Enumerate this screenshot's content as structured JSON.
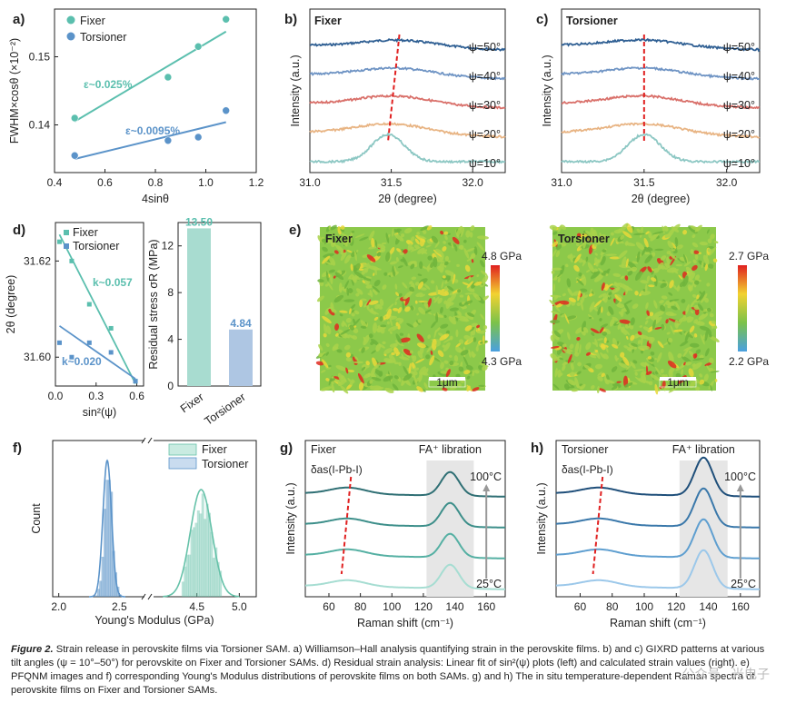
{
  "chart_data": [
    {
      "id": "a",
      "panel_label": "a)",
      "type": "scatter",
      "xlabel": "4sinθ",
      "ylabel": "FWHM×cosθ (×10⁻²)",
      "xlim": [
        0.4,
        1.2
      ],
      "ylim": [
        0.133,
        0.157
      ],
      "xticks": [
        "0.4",
        "0.6",
        "0.8",
        "1.0",
        "1.2"
      ],
      "yticks": [
        "0.14",
        "0.15"
      ],
      "legend": "top-left",
      "series": [
        {
          "name": "Fixer",
          "color": "#5bbfae",
          "x": [
            0.48,
            0.85,
            0.97,
            1.08
          ],
          "y": [
            0.141,
            0.147,
            0.1515,
            0.1555
          ],
          "fit": [
            [
              0.48,
              0.1405
            ],
            [
              1.08,
              0.1537
            ]
          ],
          "annotation": "ε~0.025%"
        },
        {
          "name": "Torsioner",
          "color": "#5b93c9",
          "x": [
            0.48,
            0.85,
            0.97,
            1.08
          ],
          "y": [
            0.1355,
            0.1377,
            0.1382,
            0.1421
          ],
          "fit": [
            [
              0.48,
              0.135
            ],
            [
              1.08,
              0.1404
            ]
          ],
          "annotation": "ε~0.0095%"
        }
      ]
    },
    {
      "id": "b",
      "panel_label": "b)",
      "type": "line",
      "title": "Fixer",
      "xlabel": "2θ (degree)",
      "ylabel": "Intensity (a.u.)",
      "xlim": [
        31.0,
        32.2
      ],
      "xticks": [
        "31.0",
        "31.5",
        "32.0"
      ],
      "series": [
        {
          "name": "ψ=50°",
          "color": "#2f5f93",
          "peak": 31.55
        },
        {
          "name": "ψ=40°",
          "color": "#6f94c4",
          "peak": 31.53
        },
        {
          "name": "ψ=30°",
          "color": "#d9706a",
          "peak": 31.52
        },
        {
          "name": "ψ=20°",
          "color": "#e8b483",
          "peak": 31.5
        },
        {
          "name": "ψ=10°",
          "color": "#8cc7c3",
          "peak": 31.48
        }
      ]
    },
    {
      "id": "c",
      "panel_label": "c)",
      "type": "line",
      "title": "Torsioner",
      "xlabel": "2θ (degree)",
      "ylabel": "Intensity (a.u.)",
      "xlim": [
        31.0,
        32.2
      ],
      "xticks": [
        "31.0",
        "31.5",
        "32.0"
      ],
      "series": [
        {
          "name": "ψ=50°",
          "color": "#2f5f93",
          "peak": 31.5
        },
        {
          "name": "ψ=40°",
          "color": "#6f94c4",
          "peak": 31.5
        },
        {
          "name": "ψ=30°",
          "color": "#d9706a",
          "peak": 31.5
        },
        {
          "name": "ψ=20°",
          "color": "#e8b483",
          "peak": 31.5
        },
        {
          "name": "ψ=10°",
          "color": "#8cc7c3",
          "peak": 31.5
        }
      ]
    },
    {
      "id": "d-left",
      "panel_label": "d)",
      "type": "scatter",
      "xlabel": "sin²(ψ)",
      "ylabel": "2θ (degree)",
      "xlim": [
        0.0,
        0.65
      ],
      "ylim": [
        31.594,
        31.628
      ],
      "xticks": [
        "0.0",
        "0.3",
        "0.6"
      ],
      "yticks": [
        "31.60",
        "31.62"
      ],
      "legend": "top-right",
      "series": [
        {
          "name": "Fixer",
          "color": "#5bbfae",
          "x": [
            0.03,
            0.12,
            0.25,
            0.41,
            0.59
          ],
          "y": [
            31.624,
            31.62,
            31.611,
            31.606,
            31.595
          ],
          "fit": [
            [
              0.03,
              31.6255
            ],
            [
              0.59,
              31.5945
            ]
          ],
          "annotation": "k~0.057"
        },
        {
          "name": "Torsioner",
          "color": "#5b93c9",
          "x": [
            0.03,
            0.12,
            0.25,
            0.41,
            0.59
          ],
          "y": [
            31.603,
            31.6,
            31.603,
            31.601,
            31.595
          ],
          "fit": [
            [
              0.03,
              31.6065
            ],
            [
              0.59,
              31.5955
            ]
          ],
          "annotation": "k~0.020"
        }
      ]
    },
    {
      "id": "d-right",
      "type": "bar",
      "ylabel": "Residual stress σR (MPa)",
      "ylim": [
        0,
        14
      ],
      "yticks": [
        "0",
        "4",
        "8",
        "12"
      ],
      "categories": [
        "Fixer",
        "Torsioner"
      ],
      "values": [
        13.5,
        4.84
      ],
      "value_labels": [
        "13.50",
        "4.84"
      ],
      "colors": [
        "#a8dcd0",
        "#aec6e3"
      ]
    },
    {
      "id": "e",
      "panel_label": "e)",
      "type": "heatmap",
      "maps": [
        {
          "title": "Fixer",
          "scale_max": "4.8 GPa",
          "scale_min": "4.3 GPa",
          "scalebar": "1μm"
        },
        {
          "title": "Torsioner",
          "scale_max": "2.7 GPa",
          "scale_min": "2.2 GPa",
          "scalebar": "1μm"
        }
      ],
      "colormap": [
        "#4aa0e0",
        "#7bc24a",
        "#f2d230",
        "#e02020"
      ]
    },
    {
      "id": "f",
      "panel_label": "f)",
      "type": "bar",
      "xlabel": "Young's Modulus (GPa)",
      "ylabel": "Count",
      "xticks": [
        "2.0",
        "2.5",
        "4.5",
        "5.0"
      ],
      "broken_axis": [
        2.7,
        4.0
      ],
      "legend": "top-right",
      "series": [
        {
          "name": "Fixer",
          "color": "#66c2a9",
          "center": 4.55,
          "width": 0.18
        },
        {
          "name": "Torsioner",
          "color": "#5b93c9",
          "center": 2.4,
          "width": 0.05
        }
      ]
    },
    {
      "id": "g",
      "panel_label": "g)",
      "type": "line",
      "title": "Fixer",
      "xlabel": "Raman shift (cm⁻¹)",
      "ylabel": "Intensity (a.u.)",
      "xlim": [
        45,
        172
      ],
      "xticks": [
        "60",
        "80",
        "100",
        "120",
        "140",
        "160"
      ],
      "annotations": [
        "δas(I-Pb-I)",
        "FA⁺ libration",
        "100°C",
        "25°C"
      ],
      "series_colors": [
        "#2f6f74",
        "#3d8f8a",
        "#55b0a3",
        "#a6ddd2"
      ]
    },
    {
      "id": "h",
      "panel_label": "h)",
      "type": "line",
      "title": "Torsioner",
      "xlabel": "Raman shift (cm⁻¹)",
      "ylabel": "Intensity (a.u.)",
      "xlim": [
        45,
        172
      ],
      "xticks": [
        "60",
        "80",
        "100",
        "120",
        "140",
        "160"
      ],
      "annotations": [
        "δas(I-Pb-I)",
        "FA⁺ libration",
        "100°C",
        "25°C"
      ],
      "series_colors": [
        "#1f4f7a",
        "#3a78aa",
        "#5f9fd0",
        "#9cc8ea"
      ]
    }
  ],
  "caption": {
    "label": "Figure 2.",
    "text": " Strain release in perovskite films via Torsioner SAM. a) Williamson–Hall analysis quantifying strain in the perovskite films. b) and c) GIXRD patterns at various tilt angles (ψ = 10°–50°) for perovskite on Fixer and Torsioner SAMs. d) Residual strain analysis: Linear fit of sin²(ψ) plots (left) and calculated strain values (right). e) PFQNM images and f) corresponding Young's Modulus distributions of perovskite films on both SAMs. g) and h) The in situ temperature-dependent Raman spectra of perovskite films on Fixer and Torsioner SAMs."
  },
  "watermark": "公众号 · 光电子"
}
